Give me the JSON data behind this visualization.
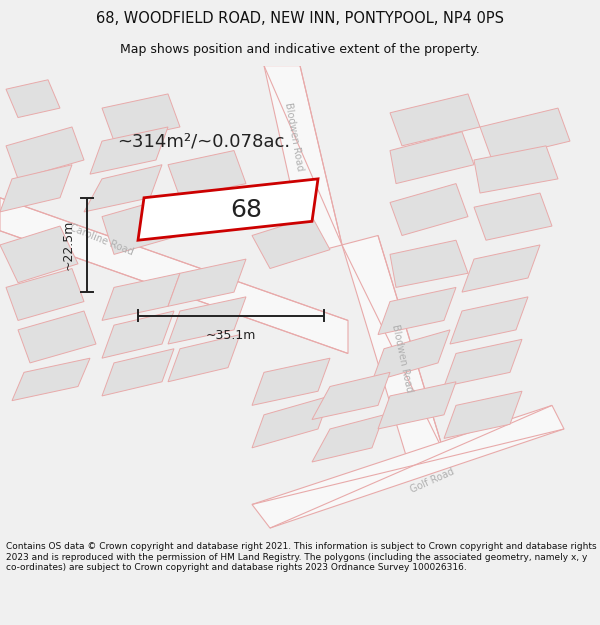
{
  "title_line1": "68, WOODFIELD ROAD, NEW INN, PONTYPOOL, NP4 0PS",
  "title_line2": "Map shows position and indicative extent of the property.",
  "area_label": "~314m²/~0.078ac.",
  "width_label": "~35.1m",
  "height_label": "~22.5m",
  "number_label": "68",
  "footer_text": "Contains OS data © Crown copyright and database right 2021. This information is subject to Crown copyright and database rights 2023 and is reproduced with the permission of HM Land Registry. The polygons (including the associated geometry, namely x, y co-ordinates) are subject to Crown copyright and database rights 2023 Ordnance Survey 100026316.",
  "bg_color": "#f0f0f0",
  "map_bg": "#f8f8f8",
  "building_fill": "#e0e0e0",
  "road_stroke": "#e8aaaa",
  "building_stroke": "#e8aaaa",
  "highlight_color": "#cc0000",
  "road_label_color": "#b0b0b0",
  "dim_color": "#222222",
  "title_color": "#111111",
  "footer_color": "#111111",
  "title_fontsize": 10.5,
  "subtitle_fontsize": 9,
  "footer_fontsize": 6.5,
  "number_fontsize": 18,
  "area_fontsize": 13,
  "dim_fontsize": 9,
  "road_label_fontsize": 7
}
